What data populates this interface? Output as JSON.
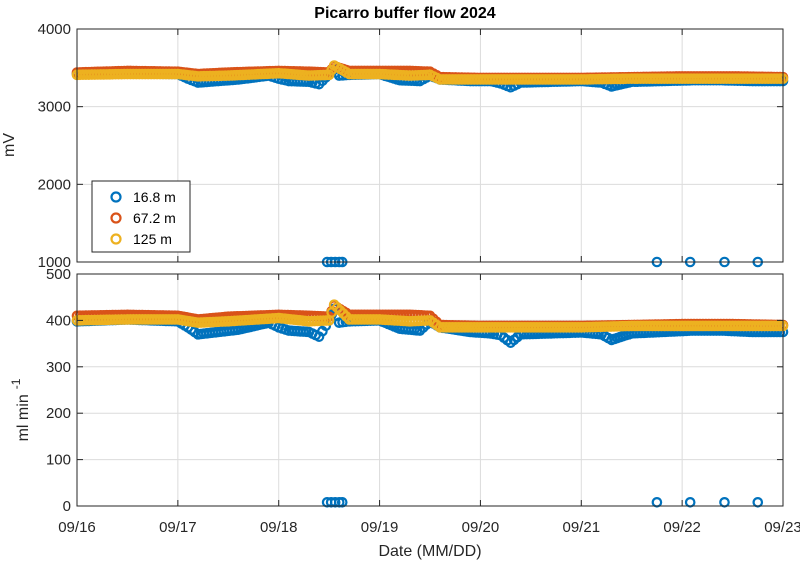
{
  "chart_data": {
    "type": "scatter",
    "title": "Picarro buffer flow 2024",
    "xlabel": "Date (MM/DD)",
    "x_ticks": [
      "09/16",
      "09/17",
      "09/18",
      "09/19",
      "09/20",
      "09/21",
      "09/22",
      "09/23"
    ],
    "xlim_days": [
      16,
      23
    ],
    "grid": true,
    "legend": {
      "placement": "inside-lower-left of top panel",
      "entries": [
        "16.8 m",
        "67.2 m",
        "125 m"
      ]
    },
    "colors": {
      "16.8 m": "#0072BD",
      "67.2 m": "#D95319",
      "125 m": "#EDB120"
    },
    "panels": [
      {
        "name": "top",
        "ylabel": "mV",
        "ylim": [
          1000,
          4000
        ],
        "y_ticks": [
          "1000",
          "2000",
          "3000",
          "4000"
        ],
        "series": [
          {
            "name": "16.8 m",
            "x_day": [
              16.0,
              16.5,
              17.0,
              17.1,
              17.2,
              17.4,
              17.6,
              17.9,
              18.0,
              18.1,
              18.3,
              18.4,
              18.5,
              18.55,
              18.6,
              18.7,
              19.0,
              19.2,
              19.4,
              19.5,
              19.6,
              19.9,
              20.1,
              20.2,
              20.3,
              20.4,
              20.7,
              21.0,
              21.2,
              21.3,
              21.5,
              21.8,
              22.1,
              22.4,
              22.7,
              23.0
            ],
            "y": [
              3420,
              3430,
              3420,
              3360,
              3310,
              3330,
              3350,
              3400,
              3360,
              3330,
              3320,
              3290,
              3420,
              3480,
              3400,
              3410,
              3420,
              3340,
              3330,
              3400,
              3350,
              3330,
              3330,
              3300,
              3250,
              3310,
              3320,
              3330,
              3310,
              3260,
              3320,
              3330,
              3340,
              3340,
              3330,
              3330
            ]
          },
          {
            "name": "16.8 m (low)",
            "x_day": [
              18.48,
              18.52,
              18.56,
              18.6,
              18.63,
              21.75,
              22.08,
              22.42,
              22.75
            ],
            "y": [
              1000,
              1000,
              1000,
              1000,
              1000,
              1000,
              1000,
              1000,
              1000
            ]
          },
          {
            "name": "67.2 m",
            "x_day": [
              16.0,
              16.5,
              17.0,
              17.2,
              17.5,
              18.0,
              18.3,
              18.5,
              18.55,
              18.7,
              19.0,
              19.3,
              19.5,
              19.6,
              20.0,
              20.5,
              21.0,
              21.5,
              22.0,
              22.5,
              23.0
            ],
            "y": [
              3440,
              3460,
              3450,
              3420,
              3440,
              3460,
              3450,
              3440,
              3520,
              3460,
              3460,
              3460,
              3450,
              3380,
              3370,
              3370,
              3370,
              3380,
              3390,
              3390,
              3380
            ]
          },
          {
            "name": "125 m",
            "x_day": [
              16.0,
              16.5,
              17.0,
              17.2,
              17.5,
              18.0,
              18.3,
              18.5,
              18.55,
              18.7,
              19.0,
              19.3,
              19.5,
              19.6,
              20.0,
              20.5,
              21.0,
              21.5,
              22.0,
              22.5,
              23.0
            ],
            "y": [
              3410,
              3420,
              3420,
              3390,
              3400,
              3430,
              3400,
              3410,
              3530,
              3420,
              3420,
              3400,
              3410,
              3350,
              3350,
              3350,
              3350,
              3360,
              3360,
              3360,
              3360
            ]
          }
        ]
      },
      {
        "name": "bottom",
        "ylabel": "ml min",
        "ylabel_superscript": "-1",
        "ylim": [
          0,
          500
        ],
        "y_ticks": [
          "0",
          "100",
          "200",
          "300",
          "400",
          "500"
        ],
        "series": [
          {
            "name": "16.8 m",
            "x_day": [
              16.0,
              16.5,
              17.0,
              17.1,
              17.2,
              17.4,
              17.6,
              17.9,
              18.0,
              18.1,
              18.3,
              18.4,
              18.5,
              18.55,
              18.6,
              18.7,
              19.0,
              19.2,
              19.4,
              19.5,
              19.6,
              19.9,
              20.1,
              20.2,
              20.3,
              20.4,
              20.7,
              21.0,
              21.2,
              21.3,
              21.5,
              21.8,
              22.1,
              22.4,
              22.7,
              23.0
            ],
            "y": [
              398,
              402,
              398,
              385,
              370,
              375,
              380,
              395,
              385,
              378,
              375,
              365,
              400,
              425,
              395,
              398,
              400,
              382,
              378,
              398,
              385,
              375,
              372,
              368,
              352,
              370,
              372,
              374,
              370,
              358,
              372,
              375,
              378,
              378,
              375,
              375
            ]
          },
          {
            "name": "16.8 m (low)",
            "x_day": [
              18.48,
              18.52,
              18.56,
              18.6,
              18.63,
              21.75,
              22.08,
              22.42,
              22.75
            ],
            "y": [
              8,
              8,
              8,
              8,
              8,
              8,
              8,
              8,
              8
            ]
          },
          {
            "name": "67.2 m",
            "x_day": [
              16.0,
              16.5,
              17.0,
              17.2,
              17.5,
              18.0,
              18.3,
              18.5,
              18.55,
              18.7,
              19.0,
              19.3,
              19.5,
              19.6,
              20.0,
              20.5,
              21.0,
              21.5,
              22.0,
              22.5,
              23.0
            ],
            "y": [
              410,
              412,
              410,
              402,
              408,
              412,
              410,
              408,
              432,
              412,
              412,
              412,
              410,
              390,
              388,
              388,
              388,
              390,
              392,
              392,
              390
            ]
          },
          {
            "name": "125 m",
            "x_day": [
              16.0,
              16.5,
              17.0,
              17.2,
              17.5,
              18.0,
              18.3,
              18.5,
              18.55,
              18.7,
              19.0,
              19.3,
              19.5,
              19.6,
              20.0,
              20.5,
              21.0,
              21.5,
              22.0,
              22.5,
              23.0
            ],
            "y": [
              400,
              402,
              402,
              395,
              398,
              405,
              398,
              400,
              434,
              402,
              402,
              398,
              400,
              385,
              385,
              385,
              385,
              388,
              388,
              388,
              388
            ]
          }
        ]
      }
    ]
  }
}
